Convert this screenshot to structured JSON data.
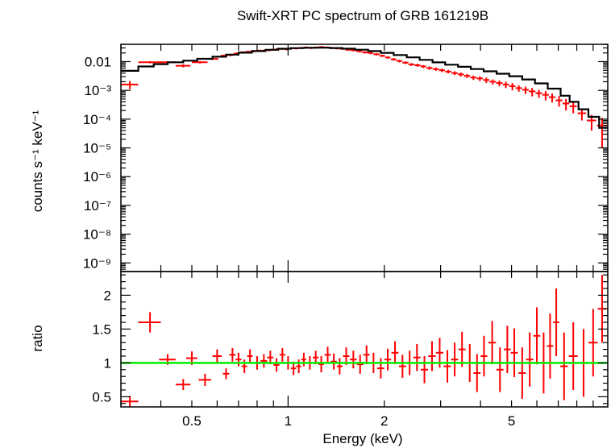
{
  "chart_data": [
    {
      "panel": "spectrum",
      "type": "scatter",
      "title": "Swift-XRT PC spectrum of GRB 161219B",
      "ylabel": "counts s⁻¹ keV⁻¹",
      "xscale": "log",
      "yscale": "log",
      "xlim": [
        0.3,
        10
      ],
      "ylim": [
        5e-10,
        0.04
      ],
      "ytick_labels": [
        {
          "value": 0.01,
          "label": "0.01"
        },
        {
          "value": 0.001,
          "label": "10⁻³"
        },
        {
          "value": 0.0001,
          "label": "10⁻⁴"
        },
        {
          "value": 1e-05,
          "label": "10⁻⁵"
        },
        {
          "value": 1e-06,
          "label": "10⁻⁶"
        },
        {
          "value": 1e-07,
          "label": "10⁻⁷"
        },
        {
          "value": 1e-08,
          "label": "10⁻⁸"
        },
        {
          "value": 1e-09,
          "label": "10⁻⁹"
        }
      ],
      "grid": false,
      "colors": {
        "data": "#ff0000",
        "model": "#000000"
      },
      "series": [
        {
          "kind": "data",
          "x": [
            0.32,
            0.37,
            0.42,
            0.47,
            0.53,
            0.58,
            0.63,
            0.66,
            0.69,
            0.72,
            0.75,
            0.78,
            0.81,
            0.84,
            0.87,
            0.9,
            0.93,
            0.96,
            0.99,
            1.02,
            1.06,
            1.1,
            1.14,
            1.18,
            1.22,
            1.27,
            1.32,
            1.37,
            1.42,
            1.48,
            1.54,
            1.6,
            1.67,
            1.74,
            1.81,
            1.89,
            1.97,
            2.05,
            2.14,
            2.23,
            2.33,
            2.43,
            2.54,
            2.65,
            2.77,
            2.9,
            3.03,
            3.17,
            3.32,
            3.47,
            3.63,
            3.8,
            3.98,
            4.17,
            4.37,
            4.58,
            4.8,
            5.03,
            5.27,
            5.53,
            5.8,
            6.09,
            6.39,
            6.7,
            7.04,
            7.4,
            7.8,
            8.3,
            8.9,
            9.6
          ],
          "xerr": [
            0.02,
            0.03,
            0.025,
            0.025,
            0.03,
            0.025,
            0.015,
            0.015,
            0.015,
            0.015,
            0.015,
            0.015,
            0.015,
            0.015,
            0.015,
            0.015,
            0.015,
            0.015,
            0.015,
            0.015,
            0.02,
            0.02,
            0.02,
            0.02,
            0.02,
            0.025,
            0.025,
            0.025,
            0.025,
            0.03,
            0.03,
            0.03,
            0.035,
            0.035,
            0.035,
            0.04,
            0.04,
            0.04,
            0.045,
            0.045,
            0.05,
            0.05,
            0.055,
            0.055,
            0.06,
            0.065,
            0.065,
            0.07,
            0.075,
            0.075,
            0.08,
            0.085,
            0.09,
            0.095,
            0.1,
            0.105,
            0.11,
            0.115,
            0.12,
            0.13,
            0.14,
            0.145,
            0.15,
            0.16,
            0.17,
            0.18,
            0.2,
            0.25,
            0.3,
            0.35
          ],
          "y": [
            0.0016,
            0.0095,
            0.0095,
            0.0072,
            0.0095,
            0.0125,
            0.016,
            0.017,
            0.019,
            0.021,
            0.022,
            0.023,
            0.024,
            0.024,
            0.025,
            0.026,
            0.027,
            0.028,
            0.027,
            0.029,
            0.029,
            0.03,
            0.031,
            0.03,
            0.031,
            0.032,
            0.031,
            0.03,
            0.029,
            0.028,
            0.026,
            0.025,
            0.023,
            0.021,
            0.02,
            0.018,
            0.016,
            0.014,
            0.012,
            0.0105,
            0.0092,
            0.008,
            0.0075,
            0.0068,
            0.006,
            0.0055,
            0.005,
            0.0045,
            0.004,
            0.0036,
            0.0032,
            0.0028,
            0.0026,
            0.0023,
            0.002,
            0.0018,
            0.0016,
            0.0014,
            0.0012,
            0.00105,
            0.00092,
            0.0008,
            0.0007,
            0.00058,
            0.00045,
            0.00035,
            0.00028,
            0.00016,
            9e-05,
            6e-05
          ],
          "yerr": [
            0.0005,
            0.0008,
            0.0008,
            0.0009,
            0.0009,
            0.001,
            0.0015,
            0.0016,
            0.0017,
            0.0018,
            0.0019,
            0.002,
            0.002,
            0.002,
            0.0021,
            0.0022,
            0.0022,
            0.0023,
            0.0023,
            0.0024,
            0.0024,
            0.0025,
            0.0025,
            0.0025,
            0.0025,
            0.0026,
            0.0025,
            0.0025,
            0.0024,
            0.0024,
            0.0023,
            0.0022,
            0.002,
            0.0019,
            0.0018,
            0.0016,
            0.0015,
            0.0013,
            0.0012,
            0.0011,
            0.001,
            0.0009,
            0.0009,
            0.0008,
            0.0008,
            0.0007,
            0.0007,
            0.0006,
            0.0006,
            0.0006,
            0.0005,
            0.0005,
            0.0005,
            0.0005,
            0.0004,
            0.0004,
            0.0004,
            0.0004,
            0.0003,
            0.0003,
            0.0003,
            0.00025,
            0.00025,
            0.0002,
            0.00018,
            0.00015,
            0.00012,
            7e-05,
            5e-05,
            5e-05
          ]
        },
        {
          "kind": "model",
          "step_edges": [
            0.3,
            0.34,
            0.38,
            0.42,
            0.47,
            0.52,
            0.58,
            0.64,
            0.7,
            0.77,
            0.85,
            0.93,
            1.02,
            1.12,
            1.23,
            1.35,
            1.48,
            1.62,
            1.78,
            1.95,
            2.14,
            2.35,
            2.58,
            2.83,
            3.1,
            3.4,
            3.73,
            4.09,
            4.49,
            4.92,
            5.4,
            5.92,
            6.49,
            7.12,
            7.6,
            8.1,
            8.7,
            9.4,
            10
          ],
          "values": [
            0.0048,
            0.0068,
            0.0082,
            0.0095,
            0.0108,
            0.0125,
            0.0148,
            0.0175,
            0.0205,
            0.0232,
            0.0258,
            0.028,
            0.0295,
            0.0303,
            0.0305,
            0.0298,
            0.0282,
            0.026,
            0.0232,
            0.0202,
            0.017,
            0.0141,
            0.0115,
            0.0094,
            0.0078,
            0.0066,
            0.0055,
            0.0046,
            0.0038,
            0.0031,
            0.0024,
            0.00175,
            0.00115,
            0.00065,
            0.0004,
            0.00022,
            0.00012,
            5e-05
          ]
        }
      ]
    },
    {
      "panel": "ratio",
      "type": "scatter",
      "xlabel": "Energy (keV)",
      "ylabel": "ratio",
      "xscale": "log",
      "xlim": [
        0.3,
        10
      ],
      "ylim": [
        0.35,
        2.35
      ],
      "xtick_labels": [
        {
          "value": 0.5,
          "label": "0.5"
        },
        {
          "value": 1,
          "label": "1"
        },
        {
          "value": 2,
          "label": "2"
        },
        {
          "value": 5,
          "label": "5"
        }
      ],
      "ytick_labels": [
        {
          "value": 0.5,
          "label": "0.5"
        },
        {
          "value": 1,
          "label": "1"
        },
        {
          "value": 1.5,
          "label": "1.5"
        },
        {
          "value": 2,
          "label": "2"
        }
      ],
      "reference_line": {
        "y": 1,
        "color": "#00ee00"
      },
      "colors": {
        "data": "#ff0000"
      },
      "series": [
        {
          "kind": "data",
          "x": [
            0.32,
            0.37,
            0.42,
            0.47,
            0.5,
            0.55,
            0.6,
            0.64,
            0.67,
            0.7,
            0.73,
            0.76,
            0.8,
            0.84,
            0.88,
            0.92,
            0.96,
            1.0,
            1.04,
            1.08,
            1.12,
            1.17,
            1.22,
            1.27,
            1.33,
            1.39,
            1.45,
            1.52,
            1.6,
            1.68,
            1.76,
            1.85,
            1.95,
            2.05,
            2.16,
            2.28,
            2.4,
            2.53,
            2.67,
            2.82,
            2.98,
            3.15,
            3.32,
            3.5,
            3.7,
            3.9,
            4.1,
            4.35,
            4.6,
            4.85,
            5.1,
            5.4,
            5.7,
            6.0,
            6.3,
            6.6,
            6.9,
            7.3,
            7.8,
            8.4,
            9.0,
            9.6
          ],
          "xerr": [
            0.02,
            0.03,
            0.025,
            0.025,
            0.02,
            0.025,
            0.02,
            0.015,
            0.015,
            0.015,
            0.015,
            0.015,
            0.02,
            0.02,
            0.02,
            0.02,
            0.02,
            0.02,
            0.02,
            0.02,
            0.02,
            0.025,
            0.025,
            0.025,
            0.03,
            0.03,
            0.03,
            0.035,
            0.04,
            0.04,
            0.04,
            0.045,
            0.05,
            0.05,
            0.055,
            0.06,
            0.06,
            0.065,
            0.07,
            0.075,
            0.08,
            0.085,
            0.085,
            0.09,
            0.1,
            0.1,
            0.1,
            0.12,
            0.12,
            0.12,
            0.13,
            0.14,
            0.15,
            0.15,
            0.15,
            0.15,
            0.15,
            0.2,
            0.25,
            0.3,
            0.3,
            0.3
          ],
          "y": [
            0.43,
            1.6,
            1.05,
            0.68,
            1.07,
            0.75,
            1.1,
            0.84,
            1.12,
            1.05,
            0.95,
            1.1,
            1.0,
            1.03,
            1.08,
            0.97,
            1.12,
            1.0,
            0.92,
            0.95,
            1.05,
            1.0,
            1.08,
            0.98,
            1.12,
            1.02,
            0.95,
            1.1,
            1.05,
            0.98,
            1.12,
            1.0,
            0.92,
            1.05,
            1.15,
            0.95,
            1.0,
            1.08,
            0.9,
            1.1,
            1.15,
            0.95,
            1.05,
            1.2,
            1.0,
            0.85,
            1.1,
            1.3,
            0.9,
            1.2,
            1.15,
            0.85,
            1.05,
            1.4,
            1.0,
            1.25,
            1.6,
            0.95,
            1.1,
            1.0,
            1.3,
            1.8
          ],
          "yerr": [
            0.08,
            0.15,
            0.08,
            0.08,
            0.1,
            0.09,
            0.1,
            0.08,
            0.1,
            0.1,
            0.1,
            0.1,
            0.1,
            0.1,
            0.1,
            0.1,
            0.1,
            0.1,
            0.1,
            0.1,
            0.1,
            0.1,
            0.1,
            0.12,
            0.12,
            0.12,
            0.12,
            0.13,
            0.13,
            0.14,
            0.14,
            0.15,
            0.15,
            0.16,
            0.17,
            0.17,
            0.18,
            0.2,
            0.2,
            0.22,
            0.22,
            0.24,
            0.25,
            0.26,
            0.28,
            0.28,
            0.3,
            0.32,
            0.33,
            0.35,
            0.36,
            0.38,
            0.4,
            0.42,
            0.45,
            0.48,
            0.5,
            0.5,
            0.5,
            0.5,
            0.5,
            0.5
          ]
        }
      ]
    }
  ]
}
